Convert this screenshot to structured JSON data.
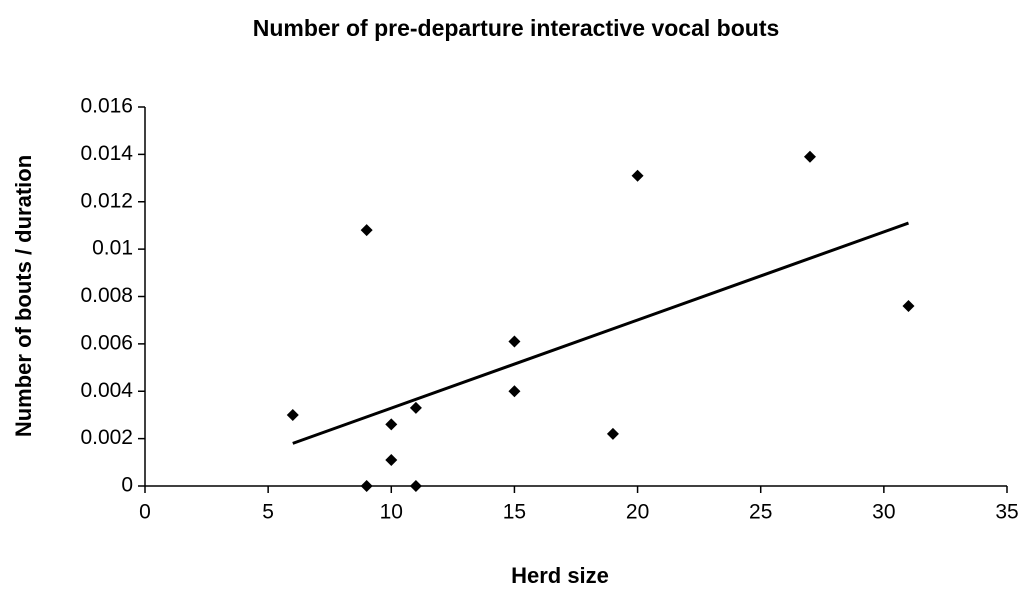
{
  "chart_data": {
    "type": "scatter",
    "title": "Number of pre-departure interactive vocal bouts",
    "xlabel": "Herd size",
    "ylabel": "Number of bouts / duration",
    "x": [
      6,
      9,
      9,
      10,
      10,
      11,
      11,
      15,
      15,
      19,
      20,
      27,
      31
    ],
    "values": [
      0.003,
      0.0108,
      0,
      0.0026,
      0.0011,
      0.0033,
      0,
      0.0061,
      0.004,
      0.0022,
      0.0131,
      0.0139,
      0.0076
    ],
    "color": "#000000",
    "trendline": {
      "x": [
        6,
        31
      ],
      "values": [
        0.0018,
        0.0111
      ],
      "color": "#000000"
    },
    "xlim": [
      0,
      35
    ],
    "xticks": [
      0,
      5,
      10,
      15,
      20,
      25,
      30,
      35
    ],
    "ylim": [
      0,
      0.016
    ],
    "yticks": [
      0,
      0.002,
      0.004,
      0.006,
      0.008,
      0.01,
      0.012,
      0.014,
      0.016
    ],
    "grid": false
  }
}
